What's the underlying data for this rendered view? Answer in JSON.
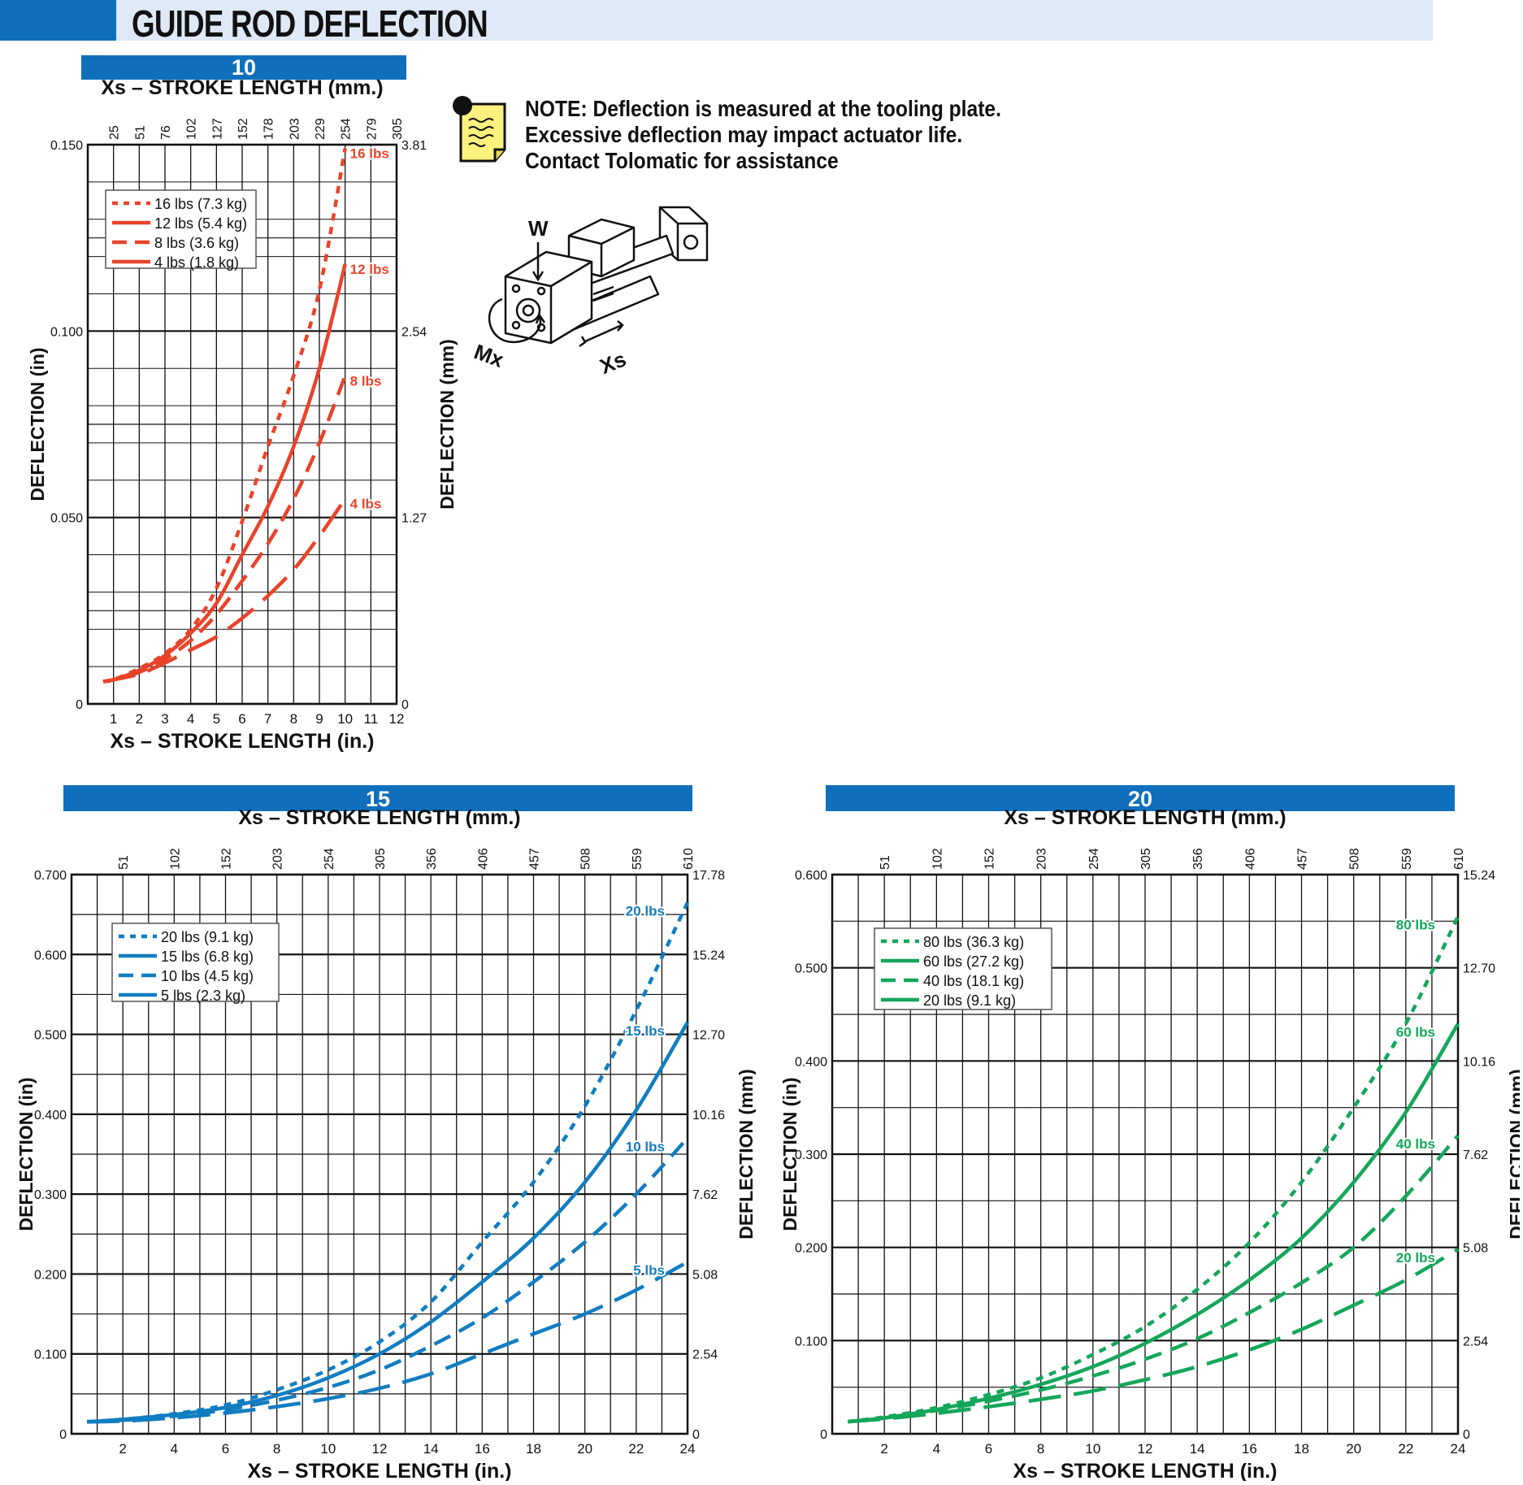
{
  "page_title": "GUIDE ROD DEFLECTION",
  "note": {
    "line1": "NOTE: Deflection is measured at the tooling plate.",
    "line2": "Excessive deflection may impact actuator life.",
    "line3": "Contact Tolomatic for assistance"
  },
  "icons": {
    "note": "memo-note-icon",
    "diagram": "actuator-diagram-icon"
  },
  "diagram_labels": {
    "w": "W",
    "mx": "Mx",
    "xs": "Xs"
  },
  "colors": {
    "header_blue": "#0f6fbd",
    "header_light": "#dfe8f6",
    "red": "#e8432a",
    "blue": "#117dc1",
    "green": "#14a65a"
  },
  "chart_data": [
    {
      "type": "line",
      "title": "10",
      "color": "#e8432a",
      "xlabel": "Xs – STROKE LENGTH (in.)",
      "x2label": "Xs – STROKE LENGTH (mm.)",
      "ylabel": "DEFLECTION (in)",
      "y2label": "DEFLECTION (mm)",
      "xlim": [
        0,
        12
      ],
      "ylim": [
        0,
        0.15
      ],
      "xticks": [
        1,
        2,
        3,
        4,
        5,
        6,
        7,
        8,
        9,
        10,
        11,
        12
      ],
      "xtick_labels": [
        "1",
        "2",
        "3",
        "4",
        "5",
        "6",
        "7",
        "8",
        "9",
        "10",
        "11",
        "12"
      ],
      "x2ticks": [
        1,
        2,
        3,
        4,
        5,
        6,
        7,
        8,
        9,
        10,
        11,
        12
      ],
      "x2tick_labels": [
        "25",
        "51",
        "76",
        "102",
        "127",
        "152",
        "178",
        "203",
        "229",
        "254",
        "279",
        "305"
      ],
      "yticks": [
        0,
        0.05,
        0.1,
        0.15
      ],
      "ytick_labels": [
        "0",
        "0.050",
        "0.100",
        "0.150"
      ],
      "y2tick_labels": [
        "0",
        "1.27",
        "2.54",
        "3.81"
      ],
      "grid": true,
      "legend_position": "top-left",
      "series": [
        {
          "name": "16 lbs (7.3 kg)",
          "label": "16 lbs",
          "dash": "dotted",
          "x": [
            0.6,
            1,
            2,
            3,
            4,
            5,
            6,
            7,
            8,
            9,
            10
          ],
          "y": [
            0.006,
            0.0065,
            0.0095,
            0.0135,
            0.02,
            0.031,
            0.049,
            0.069,
            0.088,
            0.111,
            0.149
          ]
        },
        {
          "name": "12 lbs (5.4 kg)",
          "label": "12 lbs",
          "dash": "solid",
          "x": [
            0.6,
            1,
            2,
            3,
            4,
            5,
            6,
            7,
            8,
            9,
            10
          ],
          "y": [
            0.006,
            0.0065,
            0.009,
            0.013,
            0.019,
            0.027,
            0.04,
            0.053,
            0.069,
            0.09,
            0.118
          ]
        },
        {
          "name": "8 lbs (3.6 kg)",
          "label": "8 lbs",
          "dash": "dashed",
          "x": [
            0.6,
            1,
            2,
            3,
            4,
            5,
            6,
            7,
            8,
            9,
            10
          ],
          "y": [
            0.006,
            0.0065,
            0.0085,
            0.012,
            0.017,
            0.024,
            0.033,
            0.043,
            0.055,
            0.07,
            0.088
          ]
        },
        {
          "name": "4 lbs (1.8 kg)",
          "label": "4 lbs",
          "dash": "longdash",
          "x": [
            0.6,
            1,
            2,
            3,
            4,
            5,
            6,
            7,
            8,
            9,
            10
          ],
          "y": [
            0.006,
            0.0065,
            0.008,
            0.011,
            0.0145,
            0.018,
            0.023,
            0.029,
            0.036,
            0.045,
            0.055
          ]
        }
      ]
    },
    {
      "type": "line",
      "title": "15",
      "color": "#117dc1",
      "xlabel": "Xs – STROKE LENGTH (in.)",
      "x2label": "Xs – STROKE LENGTH (mm.)",
      "ylabel": "DEFLECTION (in)",
      "y2label": "DEFLECTION (mm)",
      "xlim": [
        0,
        24
      ],
      "ylim": [
        0,
        0.7
      ],
      "xticks": [
        2,
        4,
        6,
        8,
        10,
        12,
        14,
        16,
        18,
        20,
        22,
        24
      ],
      "xtick_labels": [
        "2",
        "4",
        "6",
        "8",
        "10",
        "12",
        "14",
        "16",
        "18",
        "20",
        "22",
        "24"
      ],
      "x2ticks": [
        2,
        4,
        6,
        8,
        10,
        12,
        14,
        16,
        18,
        20,
        22,
        24
      ],
      "x2tick_labels": [
        "51",
        "102",
        "152",
        "203",
        "254",
        "305",
        "356",
        "406",
        "457",
        "508",
        "559",
        "610"
      ],
      "yticks": [
        0,
        0.1,
        0.2,
        0.3,
        0.4,
        0.5,
        0.6,
        0.7
      ],
      "ytick_labels": [
        "0",
        "0.100",
        "0.200",
        "0.300",
        "0.400",
        "0.500",
        "0.600",
        "0.700"
      ],
      "y2tick_labels": [
        "0",
        "2.54",
        "5.08",
        "7.62",
        "10.16",
        "12.70",
        "15.24",
        "17.78"
      ],
      "grid": true,
      "legend_position": "top-left",
      "series": [
        {
          "name": "20 lbs (9.1 kg)",
          "label": "20 lbs",
          "dash": "dotted",
          "x": [
            0.6,
            2,
            4,
            6,
            8,
            10,
            12,
            14,
            16,
            18,
            20,
            22,
            24
          ],
          "y": [
            0.015,
            0.018,
            0.025,
            0.036,
            0.055,
            0.08,
            0.115,
            0.165,
            0.24,
            0.315,
            0.41,
            0.53,
            0.665
          ]
        },
        {
          "name": "15 lbs (6.8 kg)",
          "label": "15 lbs",
          "dash": "solid",
          "x": [
            0.6,
            2,
            4,
            6,
            8,
            10,
            12,
            14,
            16,
            18,
            20,
            22,
            24
          ],
          "y": [
            0.015,
            0.018,
            0.024,
            0.033,
            0.048,
            0.07,
            0.1,
            0.14,
            0.19,
            0.245,
            0.315,
            0.405,
            0.515
          ]
        },
        {
          "name": "10 lbs (4.5 kg)",
          "label": "10 lbs",
          "dash": "dashed",
          "x": [
            0.6,
            2,
            4,
            6,
            8,
            10,
            12,
            14,
            16,
            18,
            20,
            22,
            24
          ],
          "y": [
            0.015,
            0.017,
            0.022,
            0.03,
            0.042,
            0.058,
            0.08,
            0.11,
            0.145,
            0.19,
            0.24,
            0.3,
            0.37
          ]
        },
        {
          "name": "5 lbs (2.3 kg)",
          "label": "5 lbs",
          "dash": "longdash",
          "x": [
            0.6,
            2,
            4,
            6,
            8,
            10,
            12,
            14,
            16,
            18,
            20,
            22,
            24
          ],
          "y": [
            0.015,
            0.016,
            0.02,
            0.026,
            0.034,
            0.044,
            0.057,
            0.075,
            0.1,
            0.125,
            0.15,
            0.18,
            0.215
          ]
        }
      ]
    },
    {
      "type": "line",
      "title": "20",
      "color": "#14a65a",
      "xlabel": "Xs – STROKE LENGTH (in.)",
      "x2label": "Xs – STROKE LENGTH (mm.)",
      "ylabel": "DEFLECTION (in)",
      "y2label": "DEFLECTION (mm)",
      "xlim": [
        0,
        24
      ],
      "ylim": [
        0,
        0.6
      ],
      "xticks": [
        2,
        4,
        6,
        8,
        10,
        12,
        14,
        16,
        18,
        20,
        22,
        24
      ],
      "xtick_labels": [
        "2",
        "4",
        "6",
        "8",
        "10",
        "12",
        "14",
        "16",
        "18",
        "20",
        "22",
        "24"
      ],
      "x2ticks": [
        2,
        4,
        6,
        8,
        10,
        12,
        14,
        16,
        18,
        20,
        22,
        24
      ],
      "x2tick_labels": [
        "51",
        "102",
        "152",
        "203",
        "254",
        "305",
        "356",
        "406",
        "457",
        "508",
        "559",
        "610"
      ],
      "yticks": [
        0,
        0.1,
        0.2,
        0.3,
        0.4,
        0.5,
        0.6
      ],
      "ytick_labels": [
        "0",
        "0.100",
        "0.200",
        "0.300",
        "0.400",
        "0.500",
        "0.600"
      ],
      "y2tick_labels": [
        "0",
        "2.54",
        "5.08",
        "7.62",
        "10.16",
        "12.70",
        "15.24"
      ],
      "grid": true,
      "legend_position": "top-left",
      "series": [
        {
          "name": "80 lbs (36.3 kg)",
          "label": "80 lbs",
          "dash": "dotted",
          "x": [
            0.6,
            2,
            4,
            6,
            8,
            10,
            12,
            14,
            16,
            18,
            20,
            22,
            24
          ],
          "y": [
            0.013,
            0.018,
            0.028,
            0.042,
            0.06,
            0.085,
            0.115,
            0.155,
            0.205,
            0.27,
            0.35,
            0.44,
            0.555
          ]
        },
        {
          "name": "60 lbs (27.2 kg)",
          "label": "60 lbs",
          "dash": "solid",
          "x": [
            0.6,
            2,
            4,
            6,
            8,
            10,
            12,
            14,
            16,
            18,
            20,
            22,
            24
          ],
          "y": [
            0.013,
            0.017,
            0.026,
            0.038,
            0.053,
            0.072,
            0.097,
            0.128,
            0.165,
            0.21,
            0.27,
            0.345,
            0.44
          ]
        },
        {
          "name": "40 lbs (18.1 kg)",
          "label": "40 lbs",
          "dash": "dashed",
          "x": [
            0.6,
            2,
            4,
            6,
            8,
            10,
            12,
            14,
            16,
            18,
            20,
            22,
            24
          ],
          "y": [
            0.013,
            0.017,
            0.025,
            0.035,
            0.047,
            0.062,
            0.08,
            0.102,
            0.13,
            0.162,
            0.2,
            0.255,
            0.32
          ]
        },
        {
          "name": "20 lbs (9.1 kg)",
          "label": "20 lbs",
          "dash": "longdash",
          "x": [
            0.6,
            2,
            4,
            6,
            8,
            10,
            12,
            14,
            16,
            18,
            20,
            22,
            24
          ],
          "y": [
            0.013,
            0.016,
            0.022,
            0.029,
            0.037,
            0.046,
            0.058,
            0.072,
            0.09,
            0.112,
            0.138,
            0.165,
            0.198
          ]
        }
      ]
    }
  ]
}
